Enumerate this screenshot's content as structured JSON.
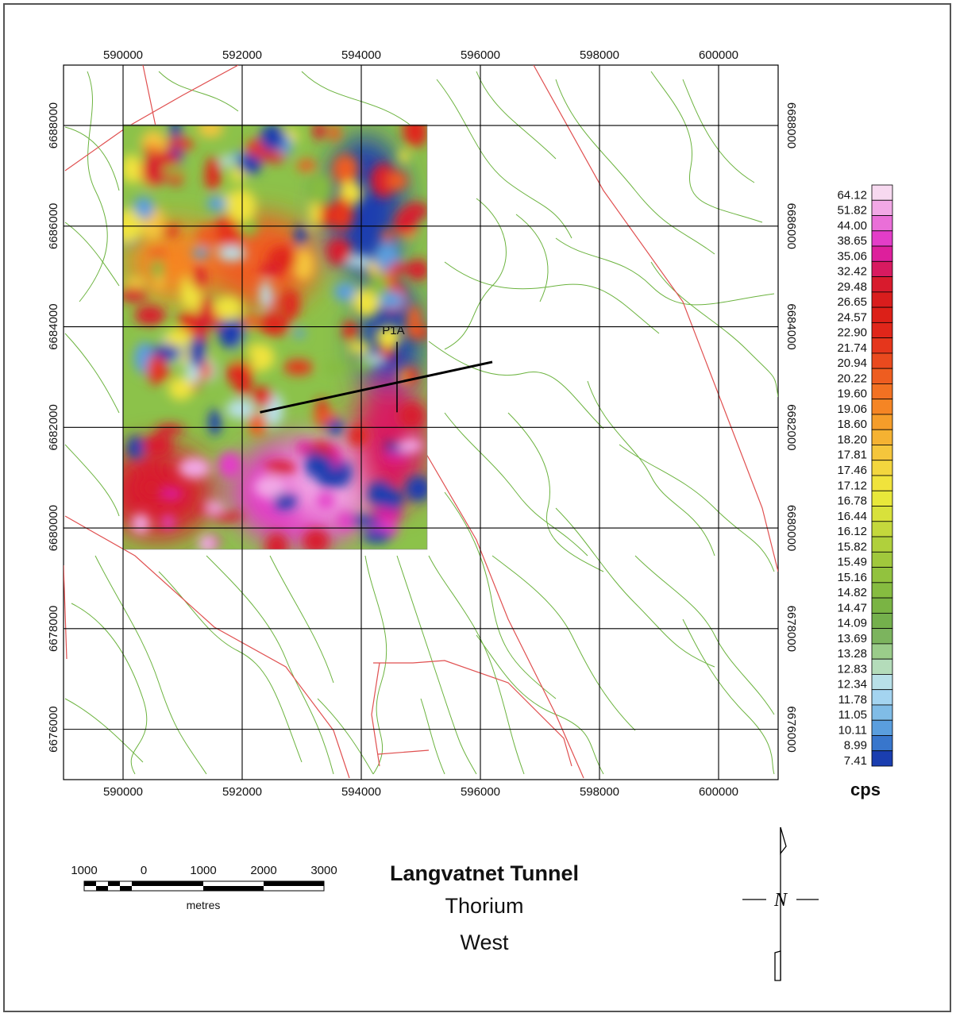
{
  "title": {
    "main": "Langvatnet Tunnel",
    "element": "Thorium",
    "area": "West"
  },
  "map": {
    "x_ticks": [
      590000,
      592000,
      594000,
      596000,
      598000,
      600000
    ],
    "y_ticks": [
      6688000,
      6686000,
      6684000,
      6682000,
      6680000,
      6678000,
      6676000
    ],
    "x_range": [
      589000,
      601000
    ],
    "y_range": [
      6675000,
      6689200
    ],
    "survey_area": {
      "x": [
        590000,
        595100
      ],
      "y": [
        6680000,
        6687000
      ]
    },
    "profile_label": "P1A",
    "profile_line": {
      "from": [
        592300,
        6682300
      ],
      "to": [
        596200,
        6683300
      ]
    },
    "colors": {
      "grid": "#000000",
      "roads": "#6cb33f",
      "faults": "#e05050",
      "profile": "#000000"
    }
  },
  "legend": {
    "unit": "cps",
    "values": [
      "64.12",
      "51.82",
      "44.00",
      "38.65",
      "35.06",
      "32.42",
      "29.48",
      "26.65",
      "24.57",
      "22.90",
      "21.74",
      "20.94",
      "20.22",
      "19.60",
      "19.06",
      "18.60",
      "18.20",
      "17.81",
      "17.46",
      "17.12",
      "16.78",
      "16.44",
      "16.12",
      "15.82",
      "15.49",
      "15.16",
      "14.82",
      "14.47",
      "14.09",
      "13.69",
      "13.28",
      "12.83",
      "12.34",
      "11.78",
      "11.05",
      "10.11",
      "8.99",
      "7.41"
    ],
    "colors": [
      "#f7d9f0",
      "#f2a8e6",
      "#ea6fd8",
      "#e33dc8",
      "#dd1f9c",
      "#d81a60",
      "#d81b2d",
      "#d91d1d",
      "#dc2018",
      "#e0261a",
      "#e5361c",
      "#ea4a1e",
      "#ee5d20",
      "#f27122",
      "#f58524",
      "#f59d2a",
      "#f5b232",
      "#f5c63c",
      "#f3d63e",
      "#f0e33c",
      "#e8e83a",
      "#d8e13b",
      "#c4d83c",
      "#b0d03c",
      "#a0c83c",
      "#92c23e",
      "#86bc40",
      "#7ab444",
      "#74b04c",
      "#7cb45e",
      "#9acc8a",
      "#b4dcba",
      "#b8e0e8",
      "#a4d4f0",
      "#80bce6",
      "#5a9ede",
      "#3876cc",
      "#1a3eb0"
    ]
  },
  "scale_bar": {
    "labels": [
      "1000",
      "0",
      "1000",
      "2000",
      "3000"
    ],
    "unit": "metres"
  },
  "north_arrow": {
    "label": "N"
  }
}
